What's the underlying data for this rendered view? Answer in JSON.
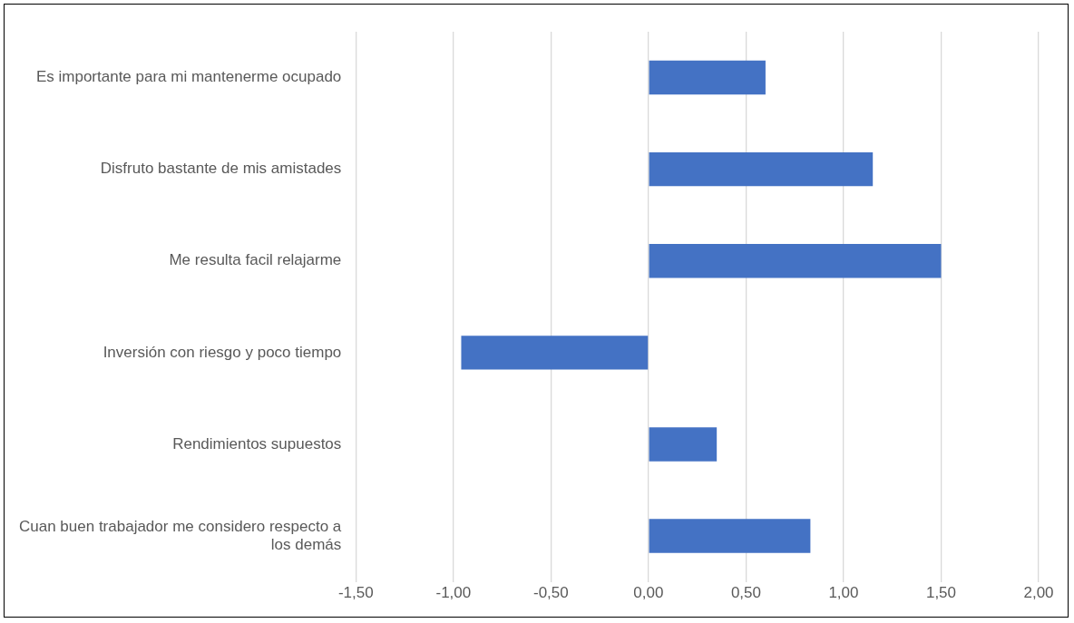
{
  "chart_data": {
    "type": "bar",
    "orientation": "horizontal",
    "categories": [
      "Es importante para mi mantenerme ocupado",
      "Disfruto bastante de mis amistades",
      "Me resulta facil relajarme",
      "Inversión con riesgo y poco tiempo",
      "Rendimientos supuestos",
      "Cuan buen trabajador me considero respecto a los demás"
    ],
    "values": [
      0.6,
      1.15,
      1.5,
      -0.96,
      0.35,
      0.83
    ],
    "color": "#4472c4",
    "xlim": [
      -1.5,
      2.0
    ],
    "xticks": [
      {
        "value": -1.5,
        "label": "-1,50"
      },
      {
        "value": -1.0,
        "label": "-1,00"
      },
      {
        "value": -0.5,
        "label": "-0,50"
      },
      {
        "value": 0,
        "label": "0,00"
      },
      {
        "value": 0.5,
        "label": "0,50"
      },
      {
        "value": 1.0,
        "label": "1,00"
      },
      {
        "value": 1.5,
        "label": "1,50"
      },
      {
        "value": 2.0,
        "label": "2,00"
      }
    ],
    "grid": "x",
    "legend": false
  }
}
